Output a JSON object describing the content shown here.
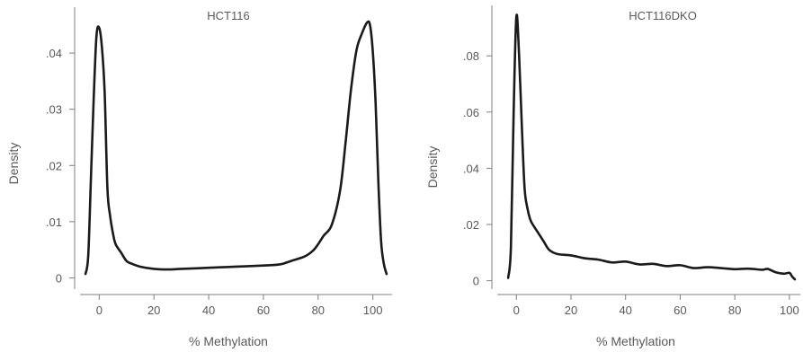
{
  "chart_data": [
    {
      "type": "line",
      "title": "HCT116",
      "xlabel": "% Methylation",
      "ylabel": "Density",
      "xlim": [
        -7,
        107
      ],
      "ylim": [
        -0.002,
        0.048
      ],
      "xticks": [
        0,
        20,
        40,
        60,
        80,
        100
      ],
      "xtick_labels": [
        "0",
        "20",
        "40",
        "60",
        "80",
        "100"
      ],
      "yticks": [
        0,
        0.01,
        0.02,
        0.03,
        0.04
      ],
      "ytick_labels": [
        "0",
        ".01",
        ".02",
        ".03",
        ".04"
      ],
      "grid": false,
      "legend": "none",
      "series": [
        {
          "color": "#1a1a1a",
          "x": [
            -5,
            -4,
            -3,
            -2,
            -1,
            0,
            1,
            2,
            3,
            4,
            5,
            6,
            8,
            10,
            12,
            15,
            20,
            25,
            30,
            40,
            50,
            60,
            66,
            70,
            75,
            78,
            80,
            82,
            85,
            88,
            90,
            92,
            94,
            96,
            98,
            99,
            100,
            101,
            102,
            103,
            104,
            105
          ],
          "y": [
            0.0007,
            0.004,
            0.018,
            0.032,
            0.043,
            0.0445,
            0.041,
            0.033,
            0.016,
            0.011,
            0.008,
            0.006,
            0.0045,
            0.003,
            0.0025,
            0.002,
            0.0016,
            0.0015,
            0.0016,
            0.0018,
            0.002,
            0.0022,
            0.0024,
            0.003,
            0.0038,
            0.0048,
            0.006,
            0.0075,
            0.0095,
            0.0155,
            0.024,
            0.0335,
            0.0405,
            0.0435,
            0.0455,
            0.0448,
            0.04,
            0.031,
            0.017,
            0.0065,
            0.0025,
            0.0007
          ]
        }
      ]
    },
    {
      "type": "line",
      "title": "HCT116DKO",
      "xlabel": "% Methylation",
      "ylabel": "Density",
      "xlim": [
        -7,
        104
      ],
      "ylim": [
        -0.003,
        0.097
      ],
      "xticks": [
        0,
        20,
        40,
        60,
        80,
        100
      ],
      "xtick_labels": [
        "0",
        "20",
        "40",
        "60",
        "80",
        "100"
      ],
      "yticks": [
        0,
        0.02,
        0.04,
        0.06,
        0.08
      ],
      "ytick_labels": [
        "0",
        ".02",
        ".04",
        ".06",
        ".08"
      ],
      "grid": false,
      "legend": "none",
      "series": [
        {
          "color": "#1a1a1a",
          "x": [
            -3,
            -2,
            -1,
            0,
            1,
            2,
            3,
            4,
            5,
            6,
            8,
            10,
            12,
            15,
            20,
            25,
            30,
            35,
            40,
            45,
            50,
            55,
            60,
            65,
            70,
            75,
            80,
            85,
            90,
            92,
            95,
            98,
            100,
            101,
            102
          ],
          "y": [
            0.001,
            0.012,
            0.06,
            0.094,
            0.08,
            0.055,
            0.033,
            0.026,
            0.022,
            0.02,
            0.017,
            0.014,
            0.011,
            0.0095,
            0.009,
            0.008,
            0.0075,
            0.0065,
            0.0068,
            0.0058,
            0.006,
            0.0052,
            0.0055,
            0.0045,
            0.0048,
            0.0045,
            0.0041,
            0.0043,
            0.0039,
            0.0042,
            0.003,
            0.0025,
            0.0028,
            0.0015,
            0.0005
          ]
        }
      ]
    }
  ]
}
